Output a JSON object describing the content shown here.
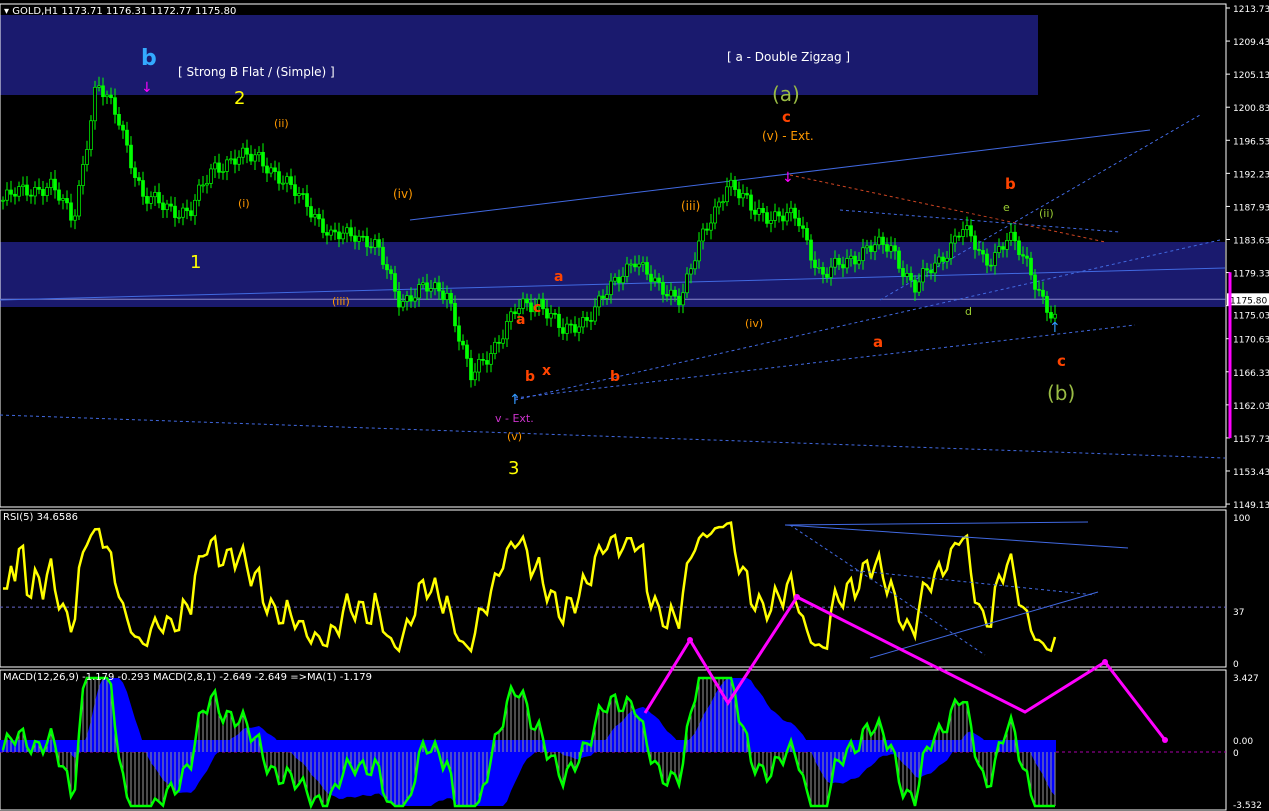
{
  "header": {
    "symbol": "GOLD,H1",
    "ohlc": "1173.71 1176.31 1172.77 1175.80"
  },
  "rsi_label": "RSI(5) 34.6586",
  "macd_label": "MACD(12,26,9) -1.179 -0.293  MACD(2,8,1) -2.649 -2.649  =>MA(1) -1.179",
  "colors": {
    "background": "#000000",
    "candle": "#00ff00",
    "zone": "#1a1a6e",
    "rsi": "#ffff00",
    "macd_hist": "#0000ff",
    "signal": "#00ff00",
    "arrow": "#ff00ff",
    "trendline": "#4169e1"
  },
  "chart_data": [
    {
      "type": "candlestick",
      "title": "GOLD,H1",
      "current_price": 1175.8,
      "y_ticks": [
        "1213.73",
        "1209.43",
        "1205.13",
        "1200.83",
        "1196.53",
        "1192.23",
        "1187.93",
        "1183.63",
        "1179.33",
        "1175.03",
        "1170.63",
        "1166.33",
        "1162.03",
        "1157.73",
        "1153.43",
        "1149.13"
      ],
      "ylim": [
        1149.13,
        1213.73
      ],
      "close_waypoints": [
        1188.7,
        1190.0,
        1190.7,
        1186.1,
        1203.7,
        1199.1,
        1188.7,
        1188.1,
        1186.8,
        1193.3,
        1193.9,
        1194.6,
        1190.7,
        1188.7,
        1183.5,
        1184.8,
        1182.2,
        1175.7,
        1177.0,
        1177.0,
        1165.3,
        1169.8,
        1174.4,
        1175.7,
        1171.1,
        1173.7,
        1177.0,
        1181.5,
        1177.0,
        1176.4,
        1184.2,
        1191.3,
        1187.4,
        1186.8,
        1186.1,
        1179.0,
        1180.3,
        1182.9,
        1182.2,
        1177.6,
        1180.3,
        1185.5,
        1180.3,
        1184.2,
        1179.0,
        1173.1
      ],
      "annotations": [
        "b",
        "[ Strong B Flat / (Simple) ]",
        "[ a - Double Zigzag ]",
        "2",
        "1",
        "3",
        "(a)",
        "c",
        "(v) - Ext.",
        "b",
        "c",
        "(b)",
        "a",
        "(iv)",
        "(iii)",
        "(v)",
        "v - Ext.",
        "(iii)",
        "(iv)",
        "a",
        "c",
        "b",
        "x",
        "a",
        "b",
        "(ii)",
        "(i)",
        "e",
        "(ii)",
        "d"
      ]
    },
    {
      "type": "line",
      "title": "RSI(5) 34.6586",
      "y_ticks": [
        "100",
        "37",
        "0"
      ],
      "ylim": [
        0,
        100
      ],
      "level": 37
    },
    {
      "type": "bar",
      "title": "MACD(12,26,9)",
      "y_ticks": [
        "3.427",
        "0.00",
        "0",
        "-3.532"
      ],
      "ylim": [
        -3.532,
        3.427
      ]
    }
  ]
}
